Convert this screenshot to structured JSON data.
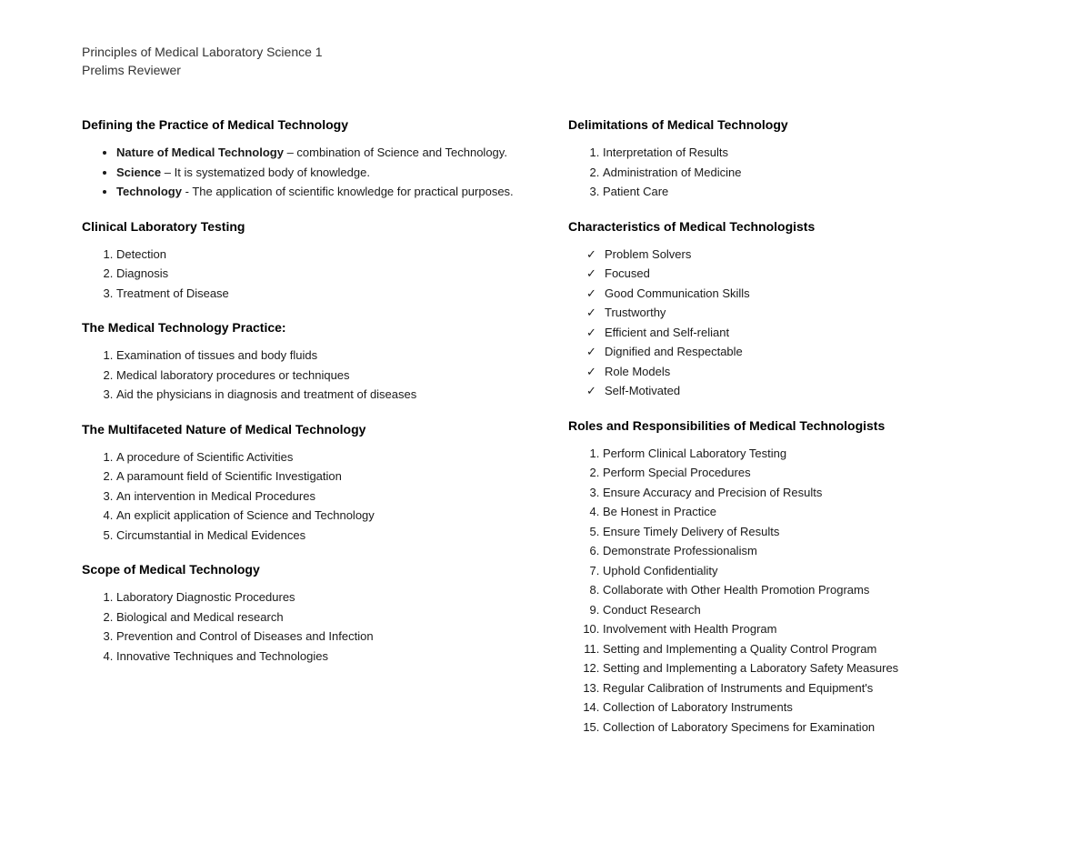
{
  "header": {
    "line1": "Principles of Medical Laboratory Science 1",
    "line2": "Prelims Reviewer"
  },
  "left": {
    "s1": {
      "title": "Defining the Practice of Medical Technology",
      "items": [
        {
          "term": "Nature of Medical Technology",
          "dash": " – ",
          "def": "combination of Science and Technology."
        },
        {
          "term": "Science",
          "dash": " – ",
          "def": "It is systematized body of knowledge."
        },
        {
          "term": "Technology",
          "dash": " - ",
          "def": "The application of scientific knowledge for practical purposes."
        }
      ]
    },
    "s2": {
      "title": "Clinical Laboratory Testing",
      "items": [
        "Detection",
        "Diagnosis",
        "Treatment of Disease"
      ]
    },
    "s3": {
      "title": "The Medical Technology Practice:",
      "items": [
        "Examination of tissues and body fluids",
        "Medical laboratory procedures or techniques",
        "Aid the physicians in diagnosis and treatment of diseases"
      ]
    },
    "s4": {
      "title": "The Multifaceted Nature of Medical Technology",
      "items": [
        "A procedure of Scientific Activities",
        "A paramount field of Scientific Investigation",
        "An intervention in Medical Procedures",
        "An explicit application of Science and Technology",
        "Circumstantial in Medical Evidences"
      ]
    },
    "s5": {
      "title": "Scope of Medical Technology",
      "items": [
        "Laboratory Diagnostic Procedures",
        "Biological and Medical research",
        "Prevention and Control of Diseases and Infection",
        "Innovative Techniques and Technologies"
      ]
    }
  },
  "right": {
    "s1": {
      "title": "Delimitations of Medical Technology",
      "items": [
        "Interpretation of Results",
        "Administration of Medicine",
        "Patient Care"
      ]
    },
    "s2": {
      "title": "Characteristics of Medical Technologists",
      "items": [
        "Problem Solvers",
        "Focused",
        "Good Communication Skills",
        "Trustworthy",
        "Efficient and Self-reliant",
        "Dignified and Respectable",
        "Role Models",
        "Self-Motivated"
      ]
    },
    "s3": {
      "title": "Roles and Responsibilities of Medical Technologists",
      "items": [
        "Perform Clinical Laboratory Testing",
        "Perform Special Procedures",
        "Ensure Accuracy and Precision of Results",
        "Be Honest in Practice",
        "Ensure Timely Delivery of Results",
        "Demonstrate Professionalism",
        "Uphold Confidentiality",
        "Collaborate with Other Health Promotion Programs",
        "Conduct Research",
        "Involvement with Health Program",
        "Setting and Implementing a Quality Control Program",
        "Setting and Implementing a Laboratory Safety Measures",
        "Regular Calibration of Instruments and Equipment's",
        "Collection of Laboratory Instruments",
        "Collection of Laboratory Specimens for Examination"
      ]
    }
  }
}
